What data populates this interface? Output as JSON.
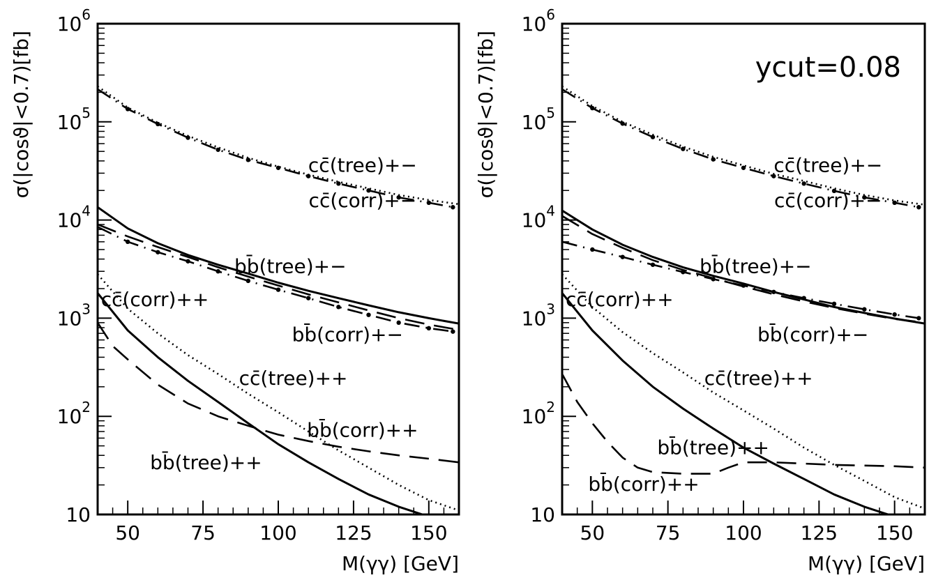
{
  "chart_data": [
    {
      "type": "line",
      "x_scale": "linear",
      "y_scale": "log",
      "xlim": [
        40,
        160
      ],
      "ylim": [
        10,
        1000000
      ],
      "xlabel": "M(γγ) [GeV]",
      "ylabel": "σ(|cosϑ|<0.7)[fb]",
      "x_ticks": [
        "50",
        "75",
        "100",
        "125",
        "150"
      ],
      "y_ticks": [
        {
          "value": 10,
          "base": "10",
          "exp": ""
        },
        {
          "value": 100,
          "base": "10",
          "exp": "2"
        },
        {
          "value": 1000,
          "base": "10",
          "exp": "3"
        },
        {
          "value": 10000,
          "base": "10",
          "exp": "4"
        },
        {
          "value": 100000,
          "base": "10",
          "exp": "5"
        },
        {
          "value": 1000000,
          "base": "10",
          "exp": "6"
        }
      ],
      "annotation": "",
      "series": [
        {
          "style": "dotted",
          "x": [
            40,
            50,
            60,
            70,
            80,
            90,
            100,
            110,
            120,
            130,
            140,
            150,
            160
          ],
          "y": [
            230000,
            140000,
            98000,
            72000,
            55000,
            43000,
            35000,
            29000,
            24500,
            21000,
            18000,
            16000,
            14500
          ]
        },
        {
          "style": "dashdot",
          "x": [
            40,
            50,
            60,
            70,
            80,
            90,
            100,
            110,
            120,
            130,
            140,
            150,
            158
          ],
          "y": [
            215000,
            135000,
            95000,
            69000,
            52000,
            41000,
            34000,
            28000,
            23500,
            20000,
            17000,
            15000,
            13500
          ]
        },
        {
          "style": "solid",
          "x": [
            40,
            50,
            60,
            70,
            80,
            90,
            100,
            110,
            120,
            130,
            140,
            150,
            160
          ],
          "y": [
            13500,
            8200,
            5800,
            4400,
            3500,
            2850,
            2300,
            1900,
            1600,
            1350,
            1150,
            1000,
            880
          ]
        },
        {
          "style": "dashed",
          "x": [
            40,
            50,
            60,
            70,
            80,
            90,
            100,
            110,
            120,
            130,
            140,
            150,
            160
          ],
          "y": [
            9000,
            6800,
            5300,
            4200,
            3300,
            2650,
            2150,
            1750,
            1450,
            1200,
            1000,
            860,
            760
          ]
        },
        {
          "style": "dashdot",
          "x": [
            40,
            50,
            60,
            70,
            80,
            90,
            100,
            110,
            120,
            130,
            140,
            150,
            158
          ],
          "y": [
            8500,
            6000,
            4700,
            3800,
            3000,
            2400,
            1950,
            1600,
            1300,
            1080,
            900,
            790,
            730
          ]
        },
        {
          "style": "dotted",
          "x": [
            40,
            50,
            60,
            70,
            80,
            90,
            100,
            110,
            120,
            130,
            140,
            150,
            160
          ],
          "y": [
            2800,
            1250,
            700,
            420,
            270,
            170,
            110,
            70,
            45,
            30,
            20,
            14,
            11
          ]
        },
        {
          "style": "solid",
          "x": [
            40,
            50,
            60,
            70,
            80,
            90,
            100,
            110,
            120,
            130,
            140,
            150
          ],
          "y": [
            1800,
            750,
            400,
            230,
            140,
            85,
            52,
            34,
            23,
            16,
            12,
            9.5
          ]
        },
        {
          "style": "dashed",
          "x": [
            40,
            45,
            50,
            60,
            70,
            80,
            90,
            100,
            110,
            120,
            130,
            140,
            150,
            160
          ],
          "y": [
            900,
            520,
            380,
            210,
            135,
            100,
            80,
            65,
            56,
            49,
            44,
            40,
            37,
            34
          ]
        }
      ],
      "labels": [
        {
          "text": "cc̄(tree)+−",
          "x": 128,
          "y": 31000
        },
        {
          "text": "cc̄(corr)+−",
          "x": 128,
          "y": 13500
        },
        {
          "text": "bb̄(tree)+−",
          "x": 104,
          "y": 2900
        },
        {
          "text": "cc̄(corr)++",
          "x": 59,
          "y": 1330
        },
        {
          "text": "bb̄(corr)+−",
          "x": 123,
          "y": 580
        },
        {
          "text": "cc̄(tree)++",
          "x": 105,
          "y": 210
        },
        {
          "text": "bb̄(corr)++",
          "x": 128,
          "y": 62
        },
        {
          "text": "bb̄(tree)++",
          "x": 76,
          "y": 29
        }
      ]
    },
    {
      "type": "line",
      "x_scale": "linear",
      "y_scale": "log",
      "xlim": [
        40,
        160
      ],
      "ylim": [
        10,
        1000000
      ],
      "xlabel": "M(γγ) [GeV]",
      "ylabel": "σ(|cosϑ|<0.7)[fb]",
      "x_ticks": [
        "50",
        "75",
        "100",
        "125",
        "150"
      ],
      "y_ticks": [
        {
          "value": 10,
          "base": "10",
          "exp": ""
        },
        {
          "value": 100,
          "base": "10",
          "exp": "2"
        },
        {
          "value": 1000,
          "base": "10",
          "exp": "3"
        },
        {
          "value": 10000,
          "base": "10",
          "exp": "4"
        },
        {
          "value": 100000,
          "base": "10",
          "exp": "5"
        },
        {
          "value": 1000000,
          "base": "10",
          "exp": "6"
        }
      ],
      "annotation": "ycut=0.08",
      "series": [
        {
          "style": "dotted",
          "x": [
            40,
            50,
            60,
            70,
            80,
            90,
            100,
            110,
            120,
            130,
            140,
            150,
            160
          ],
          "y": [
            230000,
            145000,
            100000,
            74000,
            56000,
            44000,
            36000,
            29500,
            25000,
            21000,
            18000,
            15800,
            14300
          ]
        },
        {
          "style": "dashdot",
          "x": [
            40,
            50,
            60,
            70,
            80,
            90,
            100,
            110,
            120,
            130,
            140,
            150,
            158
          ],
          "y": [
            215000,
            138000,
            96000,
            70000,
            53000,
            41500,
            34000,
            28000,
            23500,
            19800,
            17000,
            15000,
            13500
          ]
        },
        {
          "style": "solid",
          "x": [
            40,
            50,
            60,
            70,
            80,
            90,
            100,
            110,
            120,
            130,
            140,
            150,
            160
          ],
          "y": [
            12500,
            8000,
            5600,
            4200,
            3300,
            2700,
            2250,
            1850,
            1550,
            1300,
            1130,
            990,
            880
          ]
        },
        {
          "style": "dashed",
          "x": [
            40,
            50,
            60,
            70,
            80,
            90,
            100,
            110,
            120,
            130,
            140,
            150,
            160
          ],
          "y": [
            11000,
            7200,
            5200,
            3900,
            3100,
            2550,
            2100,
            1750,
            1480,
            1270,
            1110,
            980,
            900
          ]
        },
        {
          "style": "dashdot",
          "x": [
            40,
            50,
            60,
            70,
            80,
            90,
            100,
            110,
            120,
            130,
            140,
            150,
            158
          ],
          "y": [
            6000,
            5000,
            4200,
            3500,
            2950,
            2500,
            2150,
            1850,
            1600,
            1400,
            1230,
            1090,
            1000
          ]
        },
        {
          "style": "dotted",
          "x": [
            40,
            50,
            60,
            70,
            80,
            90,
            100,
            110,
            120,
            130,
            140,
            150,
            160
          ],
          "y": [
            2800,
            1300,
            720,
            440,
            280,
            175,
            115,
            75,
            48,
            32,
            22,
            15,
            11.5
          ]
        },
        {
          "style": "solid",
          "x": [
            40,
            50,
            60,
            70,
            80,
            90,
            100,
            110,
            120,
            130,
            140,
            150
          ],
          "y": [
            1800,
            750,
            370,
            200,
            120,
            75,
            48,
            33,
            23,
            16,
            12,
            9.5
          ]
        },
        {
          "style": "dashed",
          "x": [
            40,
            45,
            50,
            55,
            60,
            65,
            70,
            80,
            90,
            95,
            100,
            110,
            120,
            130,
            140,
            150,
            160
          ],
          "y": [
            270,
            140,
            85,
            55,
            38,
            30,
            27,
            26,
            26,
            30,
            34,
            34,
            33,
            32,
            31.5,
            31,
            30
          ]
        }
      ],
      "labels": [
        {
          "text": "cc̄(tree)+−",
          "x": 128,
          "y": 31000
        },
        {
          "text": "cc̄(corr)+−",
          "x": 128,
          "y": 13500
        },
        {
          "text": "bb̄(tree)+−",
          "x": 104,
          "y": 2900
        },
        {
          "text": "cc̄(corr)++",
          "x": 59,
          "y": 1330
        },
        {
          "text": "bb̄(corr)+−",
          "x": 123,
          "y": 580
        },
        {
          "text": "cc̄(tree)++",
          "x": 105,
          "y": 210
        },
        {
          "text": "bb̄(tree)++",
          "x": 90,
          "y": 41
        },
        {
          "text": "bb̄(corr)++",
          "x": 67,
          "y": 17.5
        }
      ]
    }
  ]
}
